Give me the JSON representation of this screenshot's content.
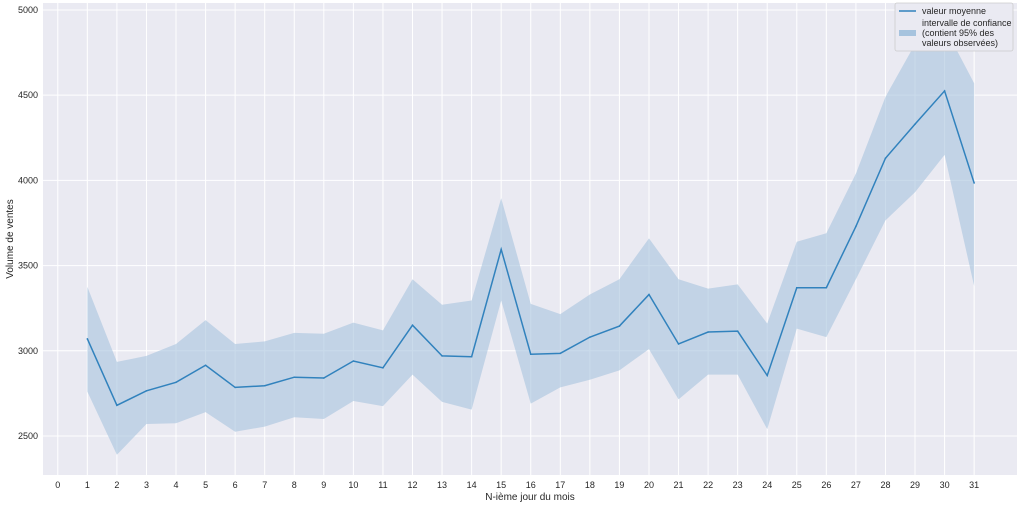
{
  "chart_data": {
    "type": "line",
    "title": "",
    "xlabel": "N-ième jour du mois",
    "ylabel": "Volume de ventes",
    "xlim": [
      -0.5,
      32.45
    ],
    "ylim": [
      2271,
      5041
    ],
    "xticks": [
      0,
      1,
      2,
      3,
      4,
      5,
      6,
      7,
      8,
      9,
      10,
      11,
      12,
      13,
      14,
      15,
      16,
      17,
      18,
      19,
      20,
      21,
      22,
      23,
      24,
      25,
      26,
      27,
      28,
      29,
      30,
      31
    ],
    "yticks": [
      2500,
      3000,
      3500,
      4000,
      4500,
      5000
    ],
    "grid": true,
    "legend_position": "top-right",
    "colors": {
      "line": "#3182bd",
      "band": "#a6c3de",
      "background": "#eaeaf2",
      "grid": "#ffffff"
    },
    "x": [
      1,
      2,
      3,
      4,
      5,
      6,
      7,
      8,
      9,
      10,
      11,
      12,
      13,
      14,
      15,
      16,
      17,
      18,
      19,
      20,
      21,
      22,
      23,
      24,
      25,
      26,
      27,
      28,
      29,
      30,
      31
    ],
    "series": [
      {
        "name": "valeur moyenne",
        "values": [
          3070,
          2680,
          2765,
          2815,
          2915,
          2785,
          2795,
          2845,
          2840,
          2940,
          2900,
          3150,
          2970,
          2965,
          3595,
          2980,
          2985,
          3080,
          3145,
          3330,
          3040,
          3110,
          3115,
          2855,
          3370,
          3370,
          3730,
          4130,
          4330,
          4525,
          3985
        ]
      },
      {
        "name": "intervalle de confiance\n(contient 95% des\nvaleurs observées)",
        "legend_lines": [
          "intervalle de confiance",
          "(contient 95% des",
          "valeurs observées)"
        ],
        "upper": [
          3375,
          2935,
          2970,
          3040,
          3180,
          3040,
          3055,
          3105,
          3100,
          3165,
          3120,
          3420,
          3270,
          3295,
          3895,
          3275,
          3215,
          3330,
          3420,
          3660,
          3420,
          3365,
          3390,
          3160,
          3640,
          3690,
          4040,
          4490,
          4800,
          4900,
          4570
        ],
        "lower": [
          2760,
          2390,
          2570,
          2575,
          2640,
          2525,
          2555,
          2610,
          2600,
          2705,
          2675,
          2860,
          2700,
          2655,
          3295,
          2690,
          2785,
          2830,
          2885,
          3010,
          2715,
          2860,
          2860,
          2540,
          3130,
          3080,
          3420,
          3765,
          3930,
          4150,
          3380
        ]
      }
    ]
  }
}
